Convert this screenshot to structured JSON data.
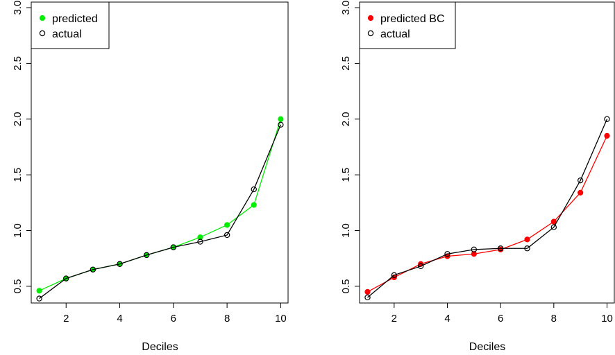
{
  "chart_data": [
    {
      "type": "line",
      "xlabel": "Deciles",
      "ylabel": "",
      "xlim": [
        0.7,
        10.3
      ],
      "ylim": [
        0.35,
        3.05
      ],
      "x_ticks": [
        2,
        4,
        6,
        8,
        10
      ],
      "y_ticks": [
        0.5,
        1.0,
        1.5,
        2.0,
        2.5,
        3.0
      ],
      "y_tick_labels": [
        "0.5",
        "1.0",
        "1.5",
        "2.0",
        "2.5",
        "3.0"
      ],
      "legend_position": "top-left",
      "x": [
        1,
        2,
        3,
        4,
        5,
        6,
        7,
        8,
        9,
        10
      ],
      "series": [
        {
          "name": "predicted",
          "color": "#00ee00",
          "marker": "filled-circle",
          "values": [
            0.46,
            0.57,
            0.65,
            0.7,
            0.78,
            0.85,
            0.94,
            1.05,
            1.23,
            2.0
          ]
        },
        {
          "name": "actual",
          "color": "#000000",
          "marker": "open-circle",
          "values": [
            0.39,
            0.57,
            0.65,
            0.7,
            0.78,
            0.85,
            0.9,
            0.96,
            1.37,
            1.95
          ]
        }
      ]
    },
    {
      "type": "line",
      "xlabel": "Deciles",
      "ylabel": "",
      "xlim": [
        0.7,
        10.3
      ],
      "ylim": [
        0.35,
        3.05
      ],
      "x_ticks": [
        2,
        4,
        6,
        8,
        10
      ],
      "y_ticks": [
        0.5,
        1.0,
        1.5,
        2.0,
        2.5,
        3.0
      ],
      "y_tick_labels": [
        "0.5",
        "1.0",
        "1.5",
        "2.0",
        "2.5",
        "3.0"
      ],
      "legend_position": "top-left",
      "x": [
        1,
        2,
        3,
        4,
        5,
        6,
        7,
        8,
        9,
        10
      ],
      "series": [
        {
          "name": "predicted BC",
          "color": "#ff0000",
          "marker": "filled-circle",
          "values": [
            0.45,
            0.58,
            0.7,
            0.77,
            0.79,
            0.83,
            0.92,
            1.08,
            1.34,
            1.85
          ]
        },
        {
          "name": "actual",
          "color": "#000000",
          "marker": "open-circle",
          "values": [
            0.4,
            0.6,
            0.68,
            0.79,
            0.83,
            0.84,
            0.84,
            1.03,
            1.45,
            2.0
          ]
        }
      ]
    }
  ]
}
